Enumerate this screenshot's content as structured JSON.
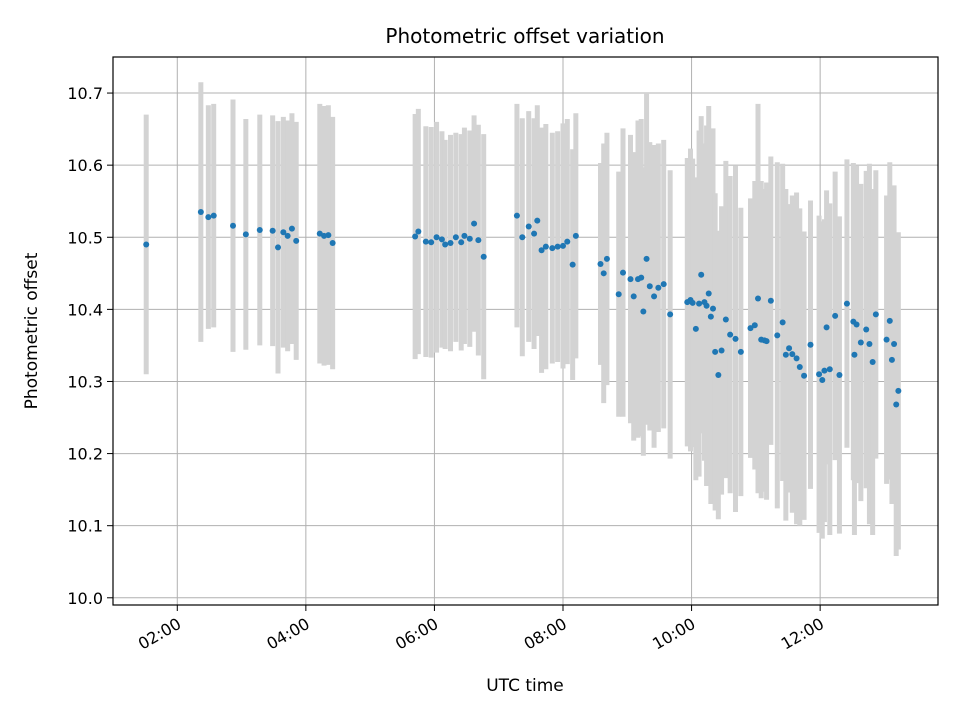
{
  "chart_data": {
    "type": "scatter",
    "title": "Photometric offset variation",
    "xlabel": "UTC time",
    "ylabel": "Photometric offset",
    "xlim": [
      "01:00",
      "13:50"
    ],
    "ylim": [
      9.99,
      10.75
    ],
    "x_ticks": [
      "02:00",
      "04:00",
      "06:00",
      "08:00",
      "10:00",
      "12:00"
    ],
    "y_ticks": [
      10.0,
      10.1,
      10.2,
      10.3,
      10.4,
      10.5,
      10.6,
      10.7
    ],
    "grid": true,
    "colors": {
      "point": "#1f77b4",
      "errorbar": "#d3d3d3",
      "grid": "#b0b0b0"
    },
    "series": [
      {
        "x": [
          "01:31",
          "02:22",
          "02:29",
          "02:34",
          "02:52",
          "03:04",
          "03:17",
          "03:29",
          "03:34",
          "03:39",
          "03:43",
          "03:47",
          "03:51",
          "04:13",
          "04:17",
          "04:21",
          "04:25",
          "05:42",
          "05:45",
          "05:52",
          "05:57",
          "06:02",
          "06:07",
          "06:10",
          "06:15",
          "06:20",
          "06:25",
          "06:28",
          "06:33",
          "06:37",
          "06:41",
          "06:46",
          "07:17",
          "07:22",
          "07:28",
          "07:33",
          "07:36",
          "07:40",
          "07:44",
          "07:50",
          "07:55",
          "08:00",
          "08:04",
          "08:09",
          "08:12",
          "08:35",
          "08:38",
          "08:41",
          "08:52",
          "08:56",
          "09:03",
          "09:06",
          "09:10",
          "09:13",
          "09:15",
          "09:18",
          "09:21",
          "09:25",
          "09:29",
          "09:34",
          "09:40",
          "09:56",
          "09:59",
          "10:01",
          "10:04",
          "10:07",
          "10:09",
          "10:12",
          "10:14",
          "10:16",
          "10:18",
          "10:20",
          "10:22",
          "10:25",
          "10:28",
          "10:32",
          "10:36",
          "10:41",
          "10:46",
          "10:55",
          "10:59",
          "11:02",
          "11:05",
          "11:08",
          "11:10",
          "11:14",
          "11:20",
          "11:25",
          "11:28",
          "11:31",
          "11:34",
          "11:38",
          "11:41",
          "11:45",
          "11:51",
          "11:59",
          "12:02",
          "12:04",
          "12:06",
          "12:09",
          "12:14",
          "12:18",
          "12:25",
          "12:31",
          "12:32",
          "12:34",
          "12:38",
          "12:43",
          "12:46",
          "12:49",
          "12:52",
          "13:02",
          "13:05",
          "13:07",
          "13:09",
          "13:11",
          "13:13"
        ],
        "y": [
          10.49,
          10.535,
          10.528,
          10.53,
          10.516,
          10.504,
          10.51,
          10.509,
          10.486,
          10.507,
          10.502,
          10.512,
          10.495,
          10.505,
          10.502,
          10.503,
          10.492,
          10.501,
          10.508,
          10.494,
          10.493,
          10.5,
          10.497,
          10.49,
          10.492,
          10.5,
          10.493,
          10.502,
          10.498,
          10.519,
          10.496,
          10.473,
          10.53,
          10.5,
          10.515,
          10.505,
          10.523,
          10.482,
          10.487,
          10.485,
          10.487,
          10.488,
          10.494,
          10.462,
          10.502,
          10.463,
          10.45,
          10.47,
          10.421,
          10.451,
          10.442,
          10.418,
          10.442,
          10.444,
          10.397,
          10.47,
          10.432,
          10.418,
          10.43,
          10.435,
          10.393,
          10.41,
          10.413,
          10.409,
          10.373,
          10.408,
          10.448,
          10.41,
          10.405,
          10.422,
          10.39,
          10.401,
          10.341,
          10.309,
          10.343,
          10.386,
          10.365,
          10.359,
          10.341,
          10.374,
          10.378,
          10.415,
          10.358,
          10.357,
          10.356,
          10.412,
          10.364,
          10.382,
          10.337,
          10.346,
          10.338,
          10.332,
          10.32,
          10.308,
          10.351,
          10.31,
          10.302,
          10.315,
          10.375,
          10.317,
          10.391,
          10.309,
          10.408,
          10.383,
          10.337,
          10.379,
          10.354,
          10.372,
          10.352,
          10.327,
          10.393,
          10.358,
          10.384,
          10.33,
          10.352,
          10.268,
          10.287
        ],
        "yerr": [
          0.18,
          0.18,
          0.155,
          0.155,
          0.175,
          0.16,
          0.16,
          0.16,
          0.175,
          0.16,
          0.16,
          0.16,
          0.165,
          0.18,
          0.18,
          0.18,
          0.175,
          0.17,
          0.17,
          0.16,
          0.16,
          0.16,
          0.15,
          0.145,
          0.15,
          0.145,
          0.15,
          0.15,
          0.15,
          0.15,
          0.16,
          0.17,
          0.155,
          0.165,
          0.16,
          0.16,
          0.16,
          0.17,
          0.17,
          0.16,
          0.16,
          0.17,
          0.17,
          0.16,
          0.17,
          0.14,
          0.18,
          0.175,
          0.17,
          0.2,
          0.2,
          0.2,
          0.22,
          0.22,
          0.2,
          0.23,
          0.2,
          0.21,
          0.2,
          0.2,
          0.2,
          0.2,
          0.21,
          0.2,
          0.21,
          0.24,
          0.22,
          0.22,
          0.25,
          0.26,
          0.26,
          0.25,
          0.22,
          0.2,
          0.2,
          0.22,
          0.22,
          0.24,
          0.2,
          0.18,
          0.2,
          0.27,
          0.22,
          0.21,
          0.22,
          0.2,
          0.24,
          0.22,
          0.23,
          0.2,
          0.22,
          0.23,
          0.22,
          0.2,
          0.2,
          0.22,
          0.22,
          0.21,
          0.19,
          0.23,
          0.2,
          0.22,
          0.2,
          0.22,
          0.25,
          0.22,
          0.22,
          0.22,
          0.25,
          0.24,
          0.2,
          0.2,
          0.22,
          0.2,
          0.22,
          0.21,
          0.22
        ]
      }
    ]
  }
}
